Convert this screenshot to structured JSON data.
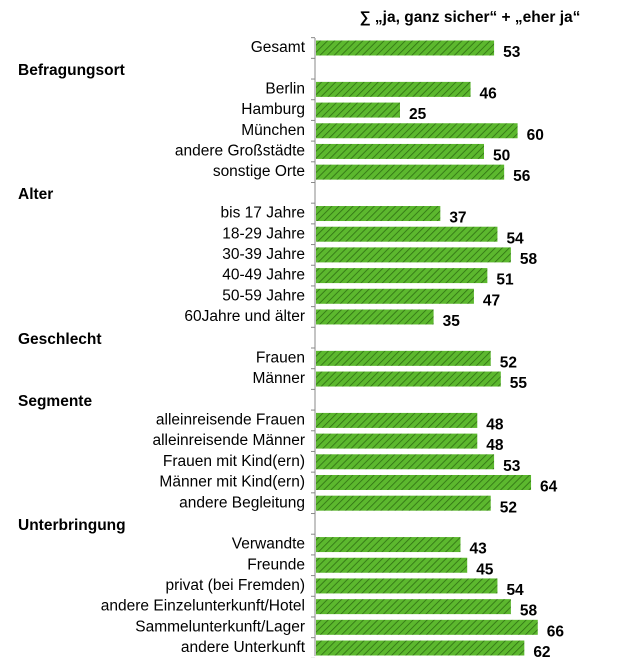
{
  "chart_data": {
    "type": "bar",
    "orientation": "horizontal",
    "title": "∑ „ja, ganz sicher“ + „eher ja“",
    "color": "#5cb82e",
    "total": {
      "category": "Gesamt",
      "value": 53
    },
    "groups": [
      {
        "name": "Befragungsort",
        "categories": [
          "Berlin",
          "Hamburg",
          "München",
          "andere Großstädte",
          "sonstige Orte"
        ],
        "values": [
          46,
          25,
          60,
          50,
          56
        ]
      },
      {
        "name": "Alter",
        "categories": [
          "bis 17 Jahre",
          "18-29 Jahre",
          "30-39 Jahre",
          "40-49 Jahre",
          "50-59 Jahre",
          "60Jahre und älter"
        ],
        "values": [
          37,
          54,
          58,
          51,
          47,
          35
        ]
      },
      {
        "name": "Geschlecht",
        "categories": [
          "Frauen",
          "Männer"
        ],
        "values": [
          52,
          55
        ]
      },
      {
        "name": "Segmente",
        "categories": [
          "alleinreisende Frauen",
          "alleinreisende Männer",
          "Frauen mit Kind(ern)",
          "Männer mit Kind(ern)",
          "andere Begleitung"
        ],
        "values": [
          48,
          48,
          53,
          64,
          52
        ]
      },
      {
        "name": "Unterbringung",
        "categories": [
          "Verwandte",
          "Freunde",
          "privat (bei Fremden)",
          "andere Einzelunterkunft/Hotel",
          "Sammelunterkunft/Lager",
          "andere Unterkunft"
        ],
        "values": [
          43,
          45,
          54,
          58,
          66,
          62
        ]
      }
    ]
  }
}
